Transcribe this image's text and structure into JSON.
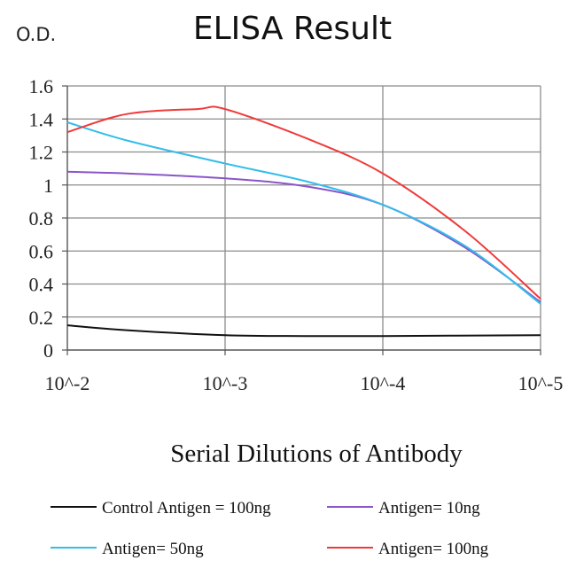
{
  "chart_data": {
    "type": "line",
    "title": "ELISA Result",
    "ylabel": "O.D.",
    "xlabel": "Serial Dilutions of Antibody",
    "x_ticks": [
      "10^-2",
      "10^-3",
      "10^-4",
      "10^-5"
    ],
    "x_scale": "log",
    "x_values": [
      0.01,
      0.001,
      0.0001,
      1e-05
    ],
    "ylim": [
      0,
      1.6
    ],
    "y_ticks": [
      "0",
      "0.2",
      "0.4",
      "0.6",
      "0.8",
      "1",
      "1.2",
      "1.4",
      "1.6"
    ],
    "grid": true,
    "legend_position": "bottom",
    "series": [
      {
        "name": "Control Antigen = 100ng",
        "color": "#111111",
        "points": [
          [
            0.01,
            0.15
          ],
          [
            0.0042,
            0.12
          ],
          [
            0.001,
            0.09
          ],
          [
            0.0003,
            0.085
          ],
          [
            0.0001,
            0.085
          ],
          [
            1e-05,
            0.09
          ]
        ]
      },
      {
        "name": "Antigen= 10ng",
        "color": "#8a55c8",
        "points": [
          [
            0.01,
            1.08
          ],
          [
            0.0042,
            1.07
          ],
          [
            0.001,
            1.04
          ],
          [
            0.0003,
            0.99
          ],
          [
            0.0001,
            0.88
          ],
          [
            3e-05,
            0.62
          ],
          [
            1e-05,
            0.29
          ]
        ]
      },
      {
        "name": "Antigen= 50ng",
        "color": "#33bdeb",
        "points": [
          [
            0.01,
            1.38
          ],
          [
            0.0042,
            1.27
          ],
          [
            0.001,
            1.13
          ],
          [
            0.0003,
            1.02
          ],
          [
            0.0001,
            0.88
          ],
          [
            3e-05,
            0.63
          ],
          [
            1e-05,
            0.28
          ]
        ]
      },
      {
        "name": "Antigen= 100ng",
        "color": "#f03a3a",
        "points": [
          [
            0.01,
            1.32
          ],
          [
            0.0042,
            1.43
          ],
          [
            0.0015,
            1.46
          ],
          [
            0.001,
            1.46
          ],
          [
            0.0003,
            1.28
          ],
          [
            0.0001,
            1.07
          ],
          [
            3e-05,
            0.72
          ],
          [
            1e-05,
            0.31
          ]
        ]
      }
    ]
  }
}
